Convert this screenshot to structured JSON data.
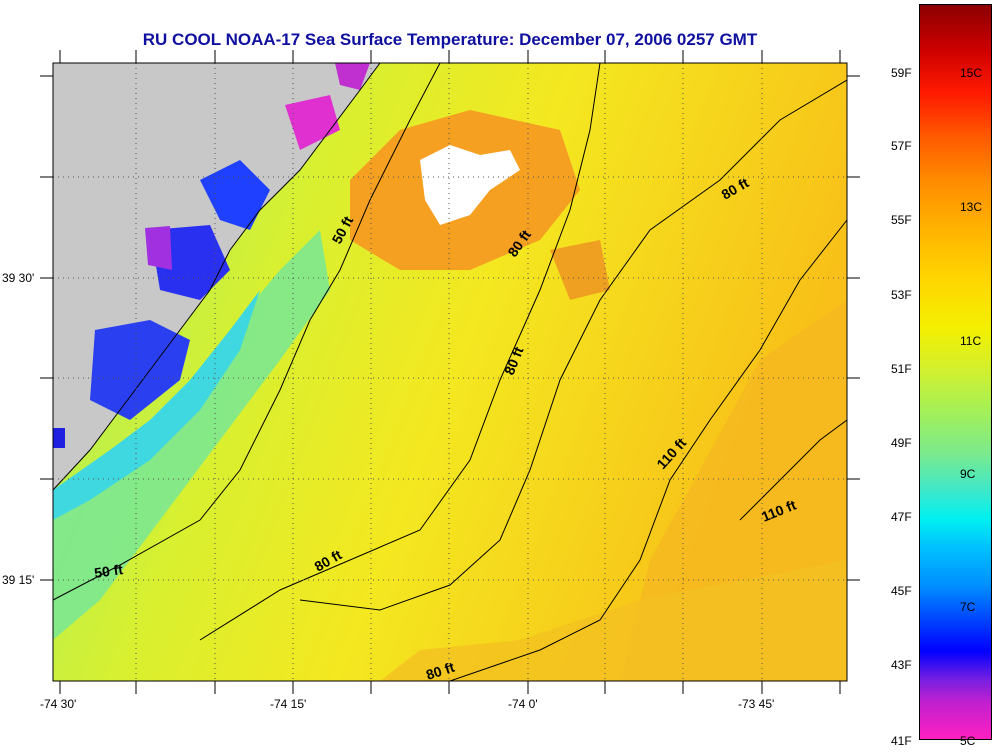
{
  "title": "RU COOL  NOAA-17  Sea Surface Temperature:  December 07, 2006 0257 GMT",
  "lat_labels": [
    "39 30'",
    "39 15'"
  ],
  "lon_labels": [
    "-74 30'",
    "-74 15'",
    "-74 0'",
    "-73 45'"
  ],
  "contour_labels": [
    "50 ft",
    "80 ft",
    "80 ft",
    "80 ft",
    "110 ft",
    "110 ft",
    "50 ft",
    "80 ft",
    "80 ft"
  ],
  "colorbar": {
    "fahrenheit": [
      "59F",
      "57F",
      "55F",
      "53F",
      "51F",
      "49F",
      "47F",
      "45F",
      "43F",
      "41F"
    ],
    "celsius": [
      "15C",
      "13C",
      "11C",
      "9C",
      "7C",
      "5C"
    ]
  },
  "colors": {
    "title": "#1010a0",
    "land": "#c8c8c8",
    "base_sst": "#e6f020"
  }
}
